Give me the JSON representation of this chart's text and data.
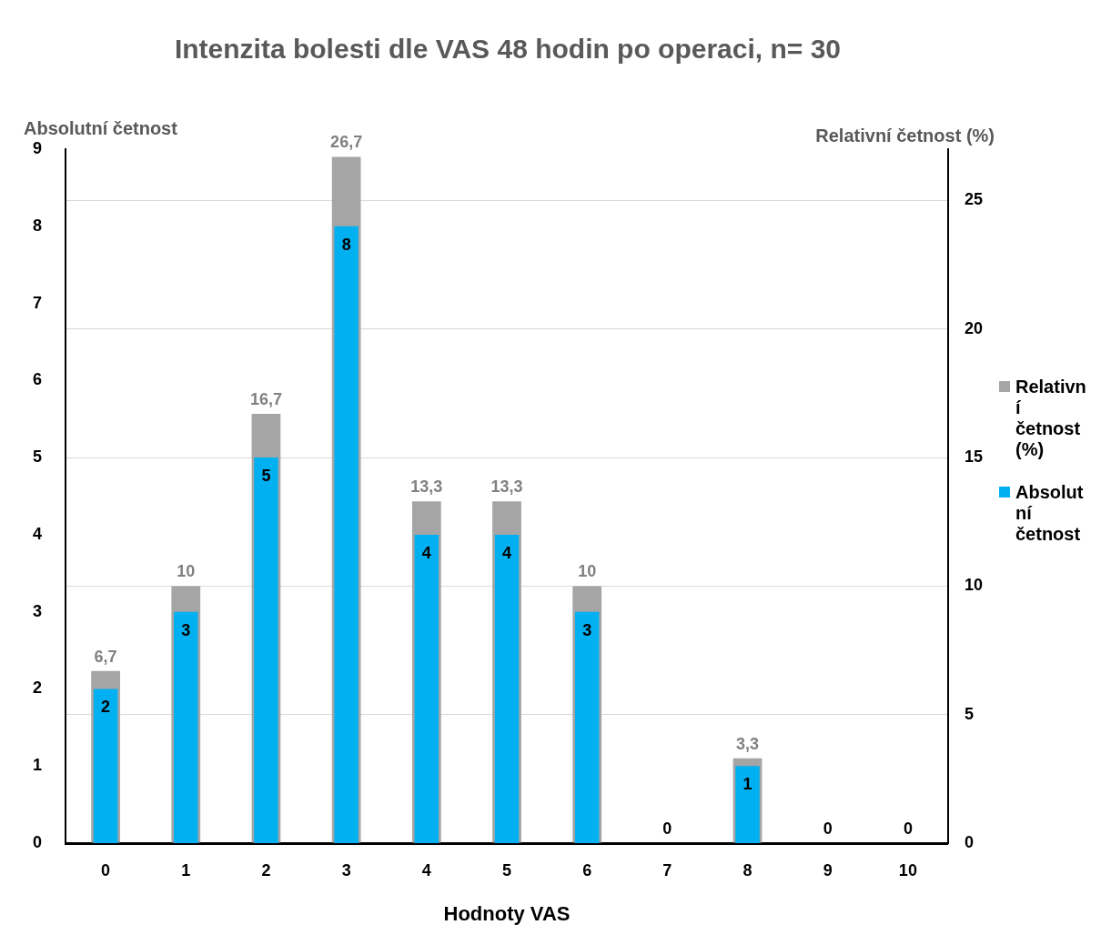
{
  "chart_data": {
    "type": "bar",
    "title": "Intenzita bolesti dle VAS 48 hodin po operaci, n= 30",
    "xlabel": "Hodnoty VAS",
    "ylabel": "Absolutní četnost",
    "y2label": "Relativní četnost (%)",
    "categories": [
      "0",
      "1",
      "2",
      "3",
      "4",
      "5",
      "6",
      "7",
      "8",
      "9",
      "10"
    ],
    "series": [
      {
        "name": "Relativní četnost (%)",
        "color": "#a5a5a5",
        "axis": "y2",
        "values": [
          6.7,
          10,
          16.7,
          26.7,
          13.3,
          13.3,
          10,
          0,
          3.3,
          0,
          0
        ],
        "value_labels": [
          "6,7",
          "10",
          "16,7",
          "26,7",
          "13,3",
          "13,3",
          "10",
          null,
          "3,3",
          null,
          null
        ]
      },
      {
        "name": "Absolutní četnost",
        "color": "#00b0f0",
        "values": [
          2,
          3,
          5,
          8,
          4,
          4,
          3,
          0,
          1,
          0,
          0
        ],
        "value_labels": [
          "2",
          "3",
          "5",
          "8",
          "4",
          "4",
          "3",
          "0",
          "1",
          "0",
          "0"
        ]
      }
    ],
    "ylim": [
      0,
      9
    ],
    "yticks": [
      0,
      1,
      2,
      3,
      4,
      5,
      6,
      7,
      8,
      9
    ],
    "y2lim": [
      0,
      27
    ],
    "y2ticks": [
      0,
      5,
      10,
      15,
      20,
      25
    ],
    "grid": "y",
    "legend": "right"
  }
}
